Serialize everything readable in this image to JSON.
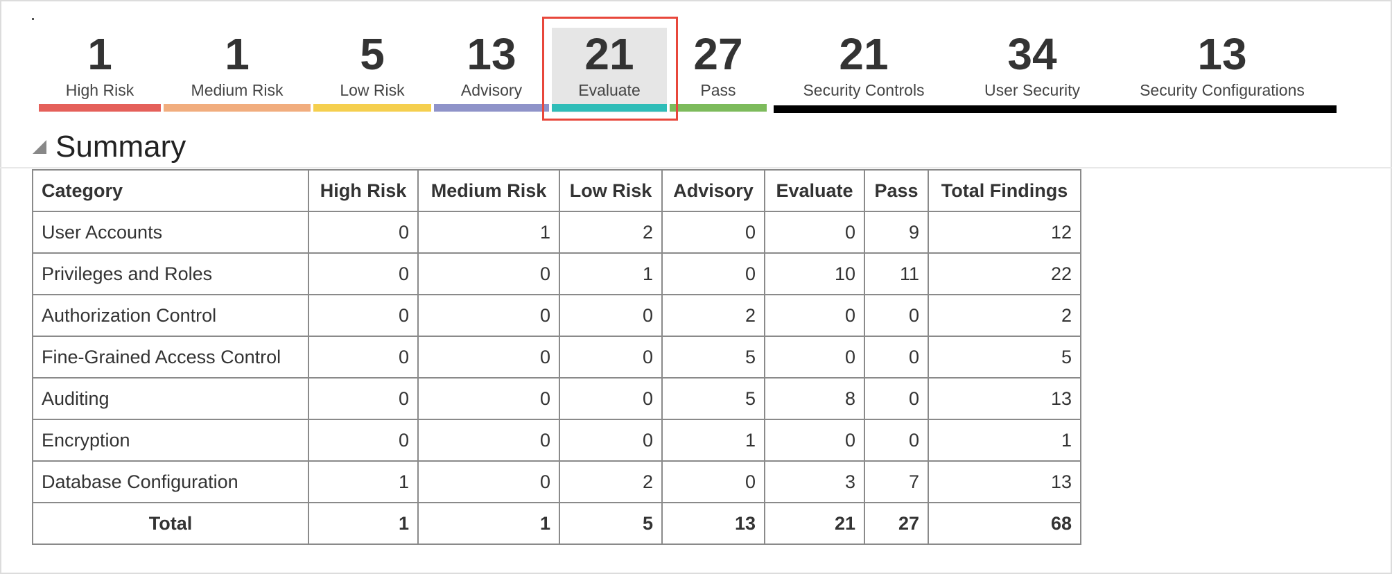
{
  "colors": {
    "high_risk": "#e5605a",
    "medium_risk": "#f1ad7e",
    "low_risk": "#f5cf4e",
    "advisory": "#8f93c9",
    "evaluate": "#2fbdb8",
    "pass": "#7dbb5c",
    "selection_outline": "#e8473b",
    "group_bar": "#000000"
  },
  "metrics": [
    {
      "value": "1",
      "label": "High Risk"
    },
    {
      "value": "1",
      "label": "Medium Risk"
    },
    {
      "value": "5",
      "label": "Low Risk"
    },
    {
      "value": "13",
      "label": "Advisory"
    },
    {
      "value": "21",
      "label": "Evaluate"
    },
    {
      "value": "27",
      "label": "Pass"
    },
    {
      "value": "21",
      "label": "Security Controls"
    },
    {
      "value": "34",
      "label": "User Security"
    },
    {
      "value": "13",
      "label": "Security Configurations"
    }
  ],
  "selected_metric": "Evaluate",
  "summary": {
    "title": "Summary",
    "columns": [
      "Category",
      "High Risk",
      "Medium Risk",
      "Low Risk",
      "Advisory",
      "Evaluate",
      "Pass",
      "Total Findings"
    ],
    "rows": [
      [
        "User Accounts",
        "0",
        "1",
        "2",
        "0",
        "0",
        "9",
        "12"
      ],
      [
        "Privileges and Roles",
        "0",
        "0",
        "1",
        "0",
        "10",
        "11",
        "22"
      ],
      [
        "Authorization Control",
        "0",
        "0",
        "0",
        "2",
        "0",
        "0",
        "2"
      ],
      [
        "Fine-Grained Access Control",
        "0",
        "0",
        "0",
        "5",
        "0",
        "0",
        "5"
      ],
      [
        "Auditing",
        "0",
        "0",
        "0",
        "5",
        "8",
        "0",
        "13"
      ],
      [
        "Encryption",
        "0",
        "0",
        "0",
        "1",
        "0",
        "0",
        "1"
      ],
      [
        "Database Configuration",
        "1",
        "0",
        "2",
        "0",
        "3",
        "7",
        "13"
      ]
    ],
    "total": [
      "Total",
      "1",
      "1",
      "5",
      "13",
      "21",
      "27",
      "68"
    ]
  }
}
